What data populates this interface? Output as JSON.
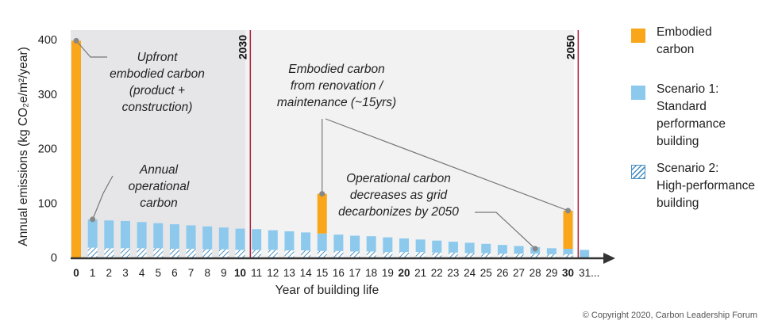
{
  "chart_data": {
    "type": "bar",
    "stacked": true,
    "xlabel": "Year of building life",
    "ylabel": "Annual emissions (kg CO₂e/m²/year)",
    "ylim": [
      0,
      420
    ],
    "yticks": [
      0,
      100,
      200,
      300,
      400
    ],
    "categories": [
      "0",
      "1",
      "2",
      "3",
      "4",
      "5",
      "6",
      "7",
      "8",
      "9",
      "10",
      "11",
      "12",
      "13",
      "14",
      "15",
      "16",
      "17",
      "18",
      "19",
      "20",
      "21",
      "22",
      "23",
      "24",
      "25",
      "26",
      "27",
      "28",
      "29",
      "30",
      "31..."
    ],
    "bold_ticks": [
      "0",
      "10",
      "20",
      "30"
    ],
    "series": [
      {
        "name": "Scenario 2: High-performance building",
        "color": "#4a90c2",
        "pattern": "hatch",
        "values": [
          0,
          18,
          17,
          17,
          17,
          17,
          16,
          16,
          15,
          15,
          14,
          14,
          14,
          13,
          13,
          12,
          12,
          11,
          11,
          10,
          10,
          10,
          9,
          9,
          8,
          8,
          7,
          7,
          7,
          6,
          6,
          null
        ]
      },
      {
        "name": "Scenario 1: Standard performance building",
        "color": "#8dc9ec",
        "values": [
          0,
          70,
          68,
          67,
          65,
          63,
          61,
          59,
          57,
          55,
          53,
          52,
          50,
          48,
          46,
          44,
          42,
          40,
          39,
          37,
          35,
          33,
          31,
          29,
          27,
          25,
          23,
          21,
          19,
          17,
          16,
          14
        ]
      },
      {
        "name": "Embodied carbon",
        "color": "#f9a61a",
        "values": [
          398,
          0,
          0,
          0,
          0,
          0,
          0,
          0,
          0,
          0,
          0,
          0,
          0,
          0,
          0,
          73,
          0,
          0,
          0,
          0,
          0,
          0,
          0,
          0,
          0,
          0,
          0,
          0,
          0,
          0,
          70,
          0
        ]
      }
    ],
    "markers": [
      {
        "label": "2030",
        "year": 10
      },
      {
        "label": "2050",
        "year": 30
      }
    ],
    "annotations": [
      {
        "text": "Upfront\nembodied carbon\n(product +\nconstruction)",
        "x": 0,
        "y": 398
      },
      {
        "text": "Annual\noperational\ncarbon",
        "x": 1,
        "y": 70
      },
      {
        "text": "Embodied carbon\nfrom renovation /\nmaintenance (~15yrs)",
        "x": [
          15,
          30
        ],
        "y": [
          117,
          86
        ]
      },
      {
        "text": "Operational carbon\ndecreases as grid\ndecarbonizes by 2050",
        "x": 28,
        "y": 16
      }
    ]
  },
  "legend": [
    {
      "label": "Embodied\ncarbon",
      "icon": "orange-swatch"
    },
    {
      "label": "Scenario 1:\nStandard\nperformance\nbuilding",
      "icon": "lightblue-swatch"
    },
    {
      "label": "Scenario 2:\nHigh-performance\nbuilding",
      "icon": "hatched-swatch"
    }
  ],
  "copyright": "© Copyright 2020, Carbon Leadership Forum"
}
